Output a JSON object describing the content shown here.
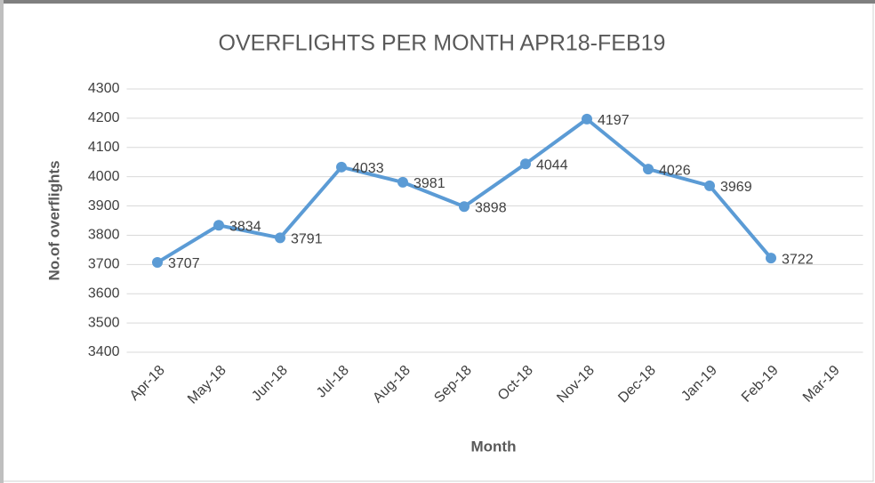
{
  "chart_data": {
    "type": "line",
    "title": "OVERFLIGHTS PER MONTH APR18-FEB19",
    "x_label": "Month",
    "y_label": "No.of overflights",
    "categories": [
      "Apr-18",
      "May-18",
      "Jun-18",
      "Jul-18",
      "Aug-18",
      "Sep-18",
      "Oct-18",
      "Nov-18",
      "Dec-18",
      "Jan-19",
      "Feb-19",
      "Mar-19"
    ],
    "values": [
      3707,
      3834,
      3791,
      4033,
      3981,
      3898,
      4044,
      4197,
      4026,
      3969,
      3722,
      null
    ],
    "color": "#5b9bd5",
    "ylim": [
      3400,
      4300
    ],
    "yticks": [
      3400,
      3500,
      3600,
      3700,
      3800,
      3900,
      4000,
      4100,
      4200,
      4300
    ],
    "grid": true
  }
}
